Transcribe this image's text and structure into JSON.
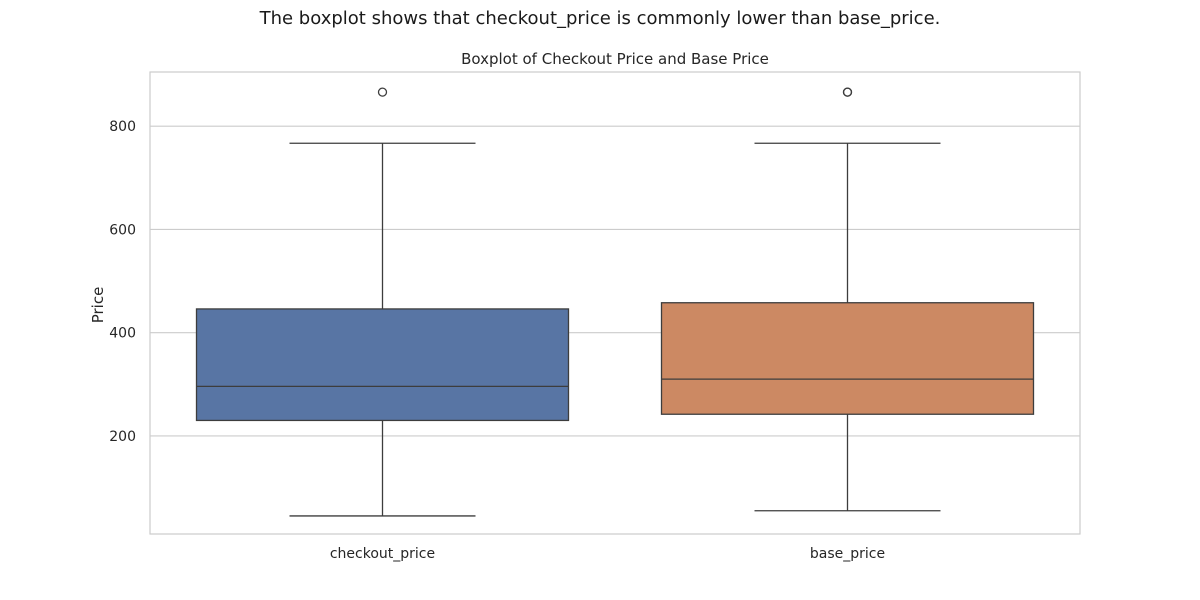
{
  "figure": {
    "suptitle": "The boxplot shows that checkout_price is commonly lower than base_price."
  },
  "chart_data": {
    "type": "boxplot",
    "title": "Boxplot of Checkout Price and Base Price",
    "xlabel": "",
    "ylabel": "Price",
    "ylim": [
      10,
      905
    ],
    "yticks": [
      200,
      400,
      600,
      800
    ],
    "grid": true,
    "categories": [
      "checkout_price",
      "base_price"
    ],
    "boxes": [
      {
        "category": "checkout_price",
        "whisker_low": 45,
        "q1": 230,
        "median": 296,
        "q3": 446,
        "whisker_high": 767,
        "outliers": [
          866
        ],
        "color": "#5875a4"
      },
      {
        "category": "base_price",
        "whisker_low": 55,
        "q1": 242,
        "median": 310,
        "q3": 458,
        "whisker_high": 767,
        "outliers": [
          866,
          866
        ],
        "color": "#cc8963"
      }
    ]
  }
}
